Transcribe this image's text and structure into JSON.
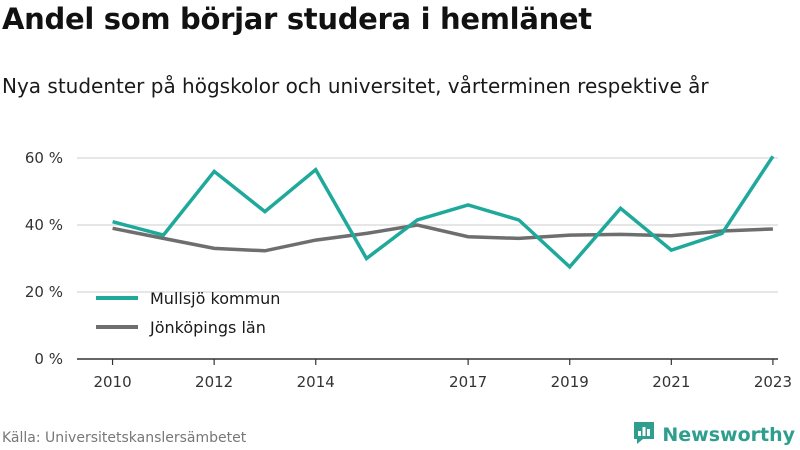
{
  "header": {
    "title": "Andel som börjar studera i hemlänet",
    "subtitle": "Nya studenter på högskolor och universitet, vårterminen respektive år"
  },
  "footer": {
    "source": "Källa: Universitetskanslersämbetet",
    "brand": "Newsworthy"
  },
  "colors": {
    "series_1": "#1fa99b",
    "series_2": "#6e6e6e",
    "grid": "#dddddd",
    "axis": "#333333",
    "brand": "#2e9e8e"
  },
  "chart_data": {
    "type": "line",
    "title": "Andel som börjar studera i hemlänet",
    "subtitle": "Nya studenter på högskolor och universitet, vårterminen respektive år",
    "x": [
      2010,
      2011,
      2012,
      2013,
      2014,
      2015,
      2016,
      2017,
      2018,
      2019,
      2020,
      2021,
      2022,
      2023
    ],
    "x_tick_values": [
      2010,
      2012,
      2014,
      2017,
      2019,
      2021,
      2023
    ],
    "x_tick_labels": [
      "2010",
      "2012",
      "2014",
      "2017",
      "2019",
      "2021",
      "2023"
    ],
    "xlim": [
      2009.3,
      2023.1
    ],
    "ylim": [
      0,
      60
    ],
    "y_ticks": [
      0,
      20,
      40,
      60
    ],
    "y_tick_labels": [
      "0 %",
      "20 %",
      "40 %",
      "60 %"
    ],
    "grid": true,
    "legend_position": "bottom-left",
    "series": [
      {
        "name": "Mullsjö kommun",
        "color": "#1fa99b",
        "values": [
          41,
          37,
          56,
          44,
          56.5,
          30,
          41.5,
          46,
          41.5,
          27.5,
          45,
          32.5,
          37.5,
          60.5
        ]
      },
      {
        "name": "Jönköpings län",
        "color": "#6e6e6e",
        "values": [
          39,
          36,
          33,
          32.3,
          35.5,
          37.5,
          40,
          36.5,
          36,
          37,
          37.2,
          36.8,
          38.2,
          38.8
        ]
      }
    ]
  }
}
